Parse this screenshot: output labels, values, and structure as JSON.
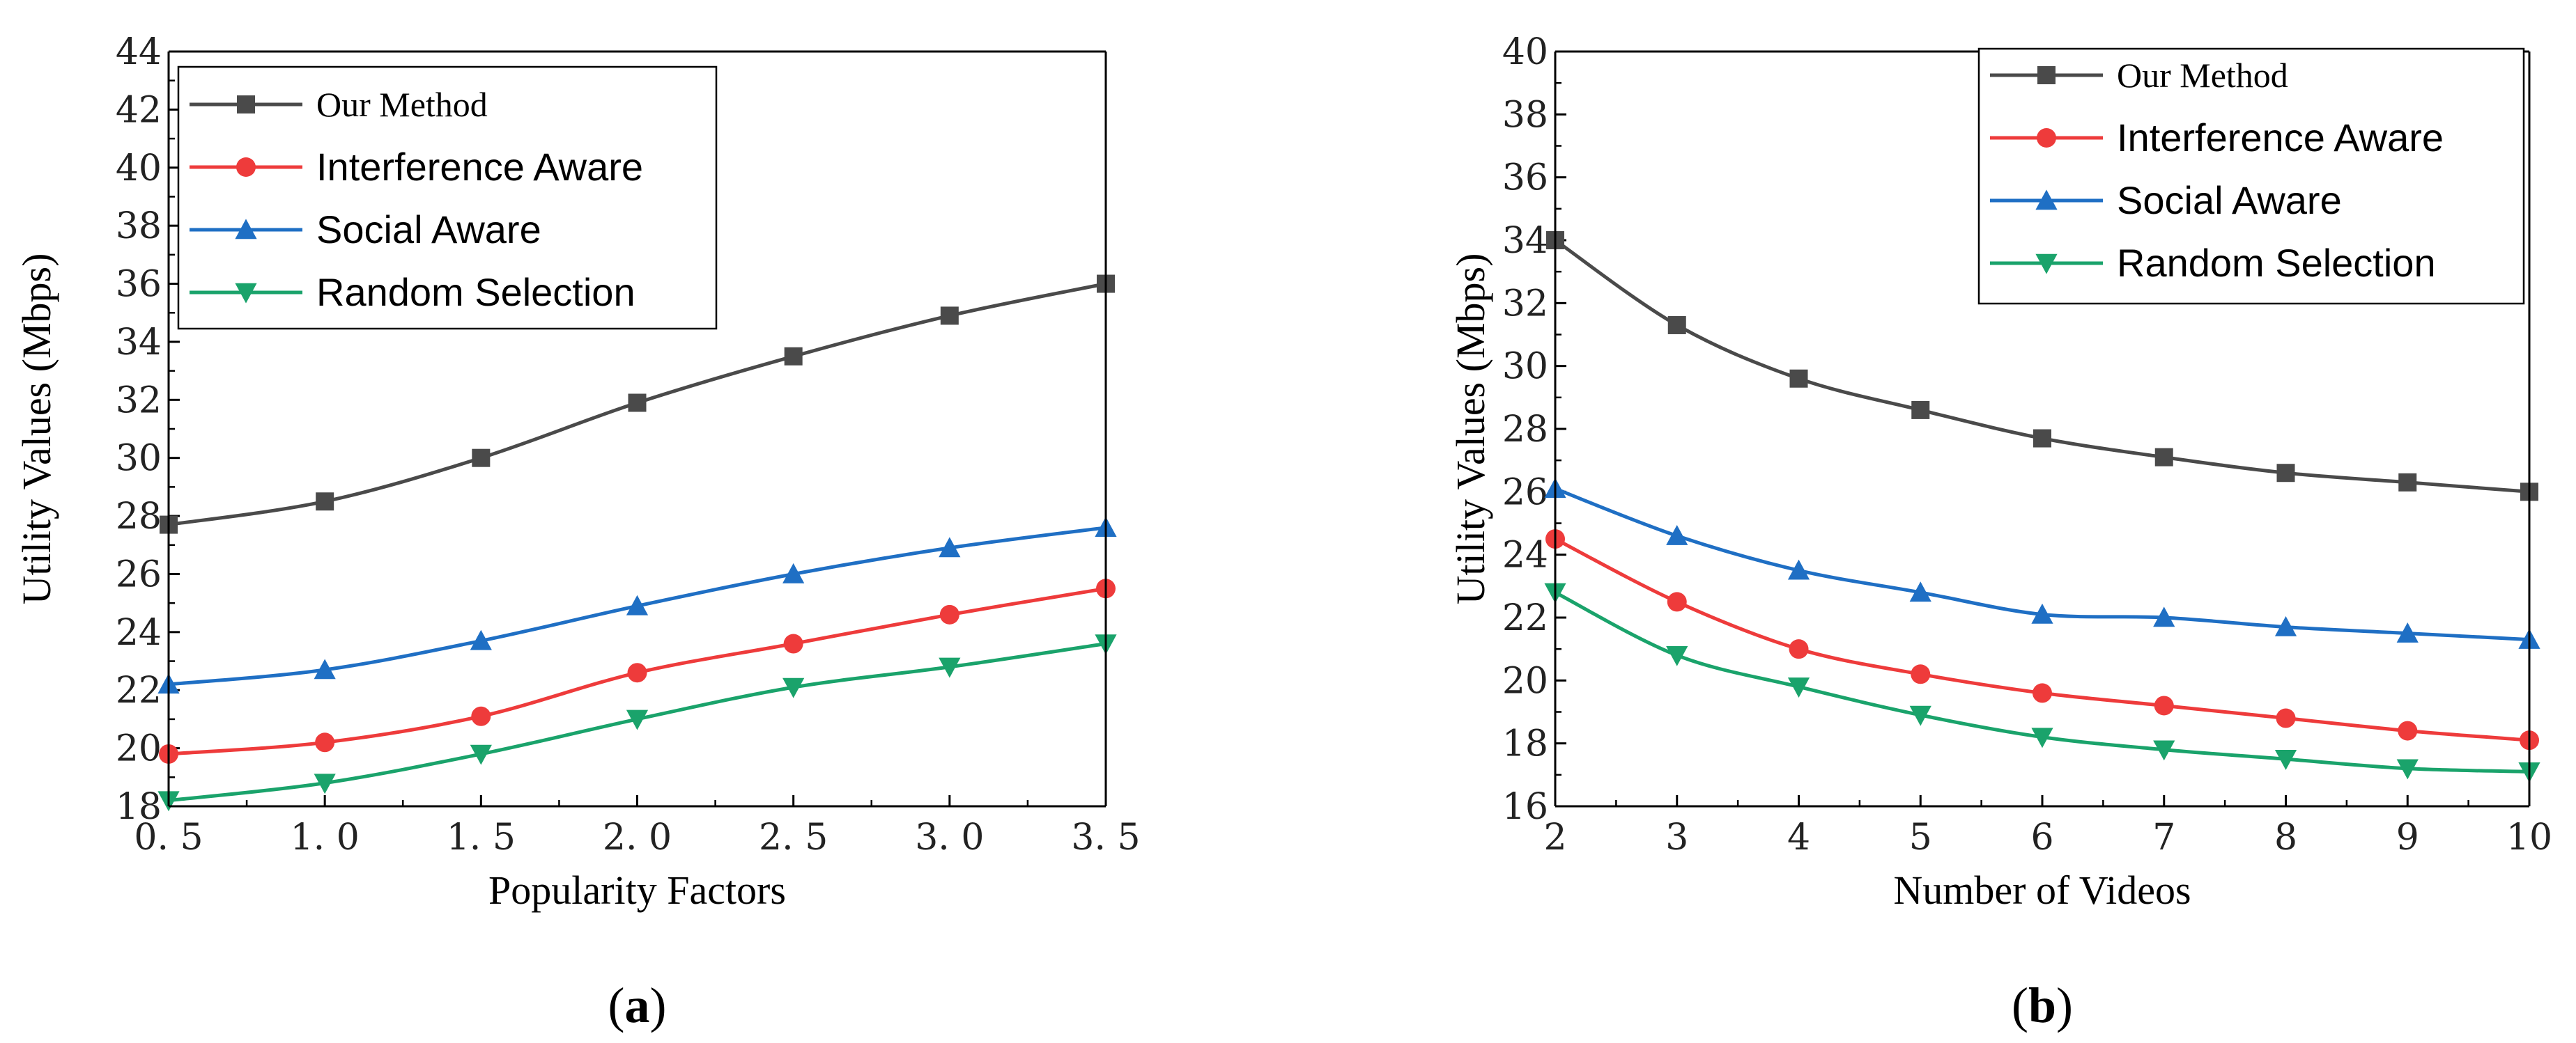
{
  "figure": {
    "panel_a_label": "a",
    "panel_b_label": "b"
  },
  "chart_data": [
    {
      "type": "line",
      "panel": "a",
      "title": "",
      "xlabel": "Popularity Factors",
      "ylabel": "Utility Values (Mbps)",
      "x": [
        0.5,
        1.0,
        1.5,
        2.0,
        2.5,
        3.0,
        3.5
      ],
      "x_tick_labels": [
        "0. 5",
        "1. 0",
        "1. 5",
        "2. 0",
        "2. 5",
        "3. 0",
        "3. 5"
      ],
      "xlim": [
        0.5,
        3.5
      ],
      "ylim": [
        18,
        44
      ],
      "y_ticks": [
        18,
        20,
        22,
        24,
        26,
        28,
        30,
        32,
        34,
        36,
        38,
        40,
        42,
        44
      ],
      "legend_position": "top-left",
      "series": [
        {
          "name": "Our Method",
          "color": "#4a4a4a",
          "marker": "square",
          "values": [
            27.7,
            28.5,
            30.0,
            31.9,
            33.5,
            34.9,
            36.0
          ]
        },
        {
          "name": "Interference Aware",
          "color": "#ee3b3b",
          "marker": "circle",
          "values": [
            19.8,
            20.2,
            21.1,
            22.6,
            23.6,
            24.6,
            25.5
          ]
        },
        {
          "name": "Social Aware",
          "color": "#1f6fc4",
          "marker": "triangle-up",
          "values": [
            22.2,
            22.7,
            23.7,
            24.9,
            26.0,
            26.9,
            27.6
          ]
        },
        {
          "name": "Random Selection",
          "color": "#1aa36b",
          "marker": "triangle-down",
          "values": [
            18.2,
            18.8,
            19.8,
            21.0,
            22.1,
            22.8,
            23.6
          ]
        }
      ]
    },
    {
      "type": "line",
      "panel": "b",
      "title": "",
      "xlabel": "Number of Videos",
      "ylabel": "Utility Values (Mbps)",
      "x": [
        2,
        3,
        4,
        5,
        6,
        7,
        8,
        9,
        10
      ],
      "x_tick_labels": [
        "2",
        "3",
        "4",
        "5",
        "6",
        "7",
        "8",
        "9",
        "10"
      ],
      "xlim": [
        2,
        10
      ],
      "ylim": [
        16,
        40
      ],
      "y_ticks": [
        16,
        18,
        20,
        22,
        24,
        26,
        28,
        30,
        32,
        34,
        36,
        38,
        40
      ],
      "legend_position": "top-right",
      "series": [
        {
          "name": "Our Method",
          "color": "#4a4a4a",
          "marker": "square",
          "values": [
            34.0,
            31.3,
            29.6,
            28.6,
            27.7,
            27.1,
            26.6,
            26.3,
            26.0
          ]
        },
        {
          "name": "Interference Aware",
          "color": "#ee3b3b",
          "marker": "circle",
          "values": [
            24.5,
            22.5,
            21.0,
            20.2,
            19.6,
            19.2,
            18.8,
            18.4,
            18.1
          ]
        },
        {
          "name": "Social Aware",
          "color": "#1f6fc4",
          "marker": "triangle-up",
          "values": [
            26.1,
            24.6,
            23.5,
            22.8,
            22.1,
            22.0,
            21.7,
            21.5,
            21.3
          ]
        },
        {
          "name": "Random Selection",
          "color": "#1aa36b",
          "marker": "triangle-down",
          "values": [
            22.8,
            20.8,
            19.8,
            18.9,
            18.2,
            17.8,
            17.5,
            17.2,
            17.1
          ]
        }
      ]
    }
  ]
}
